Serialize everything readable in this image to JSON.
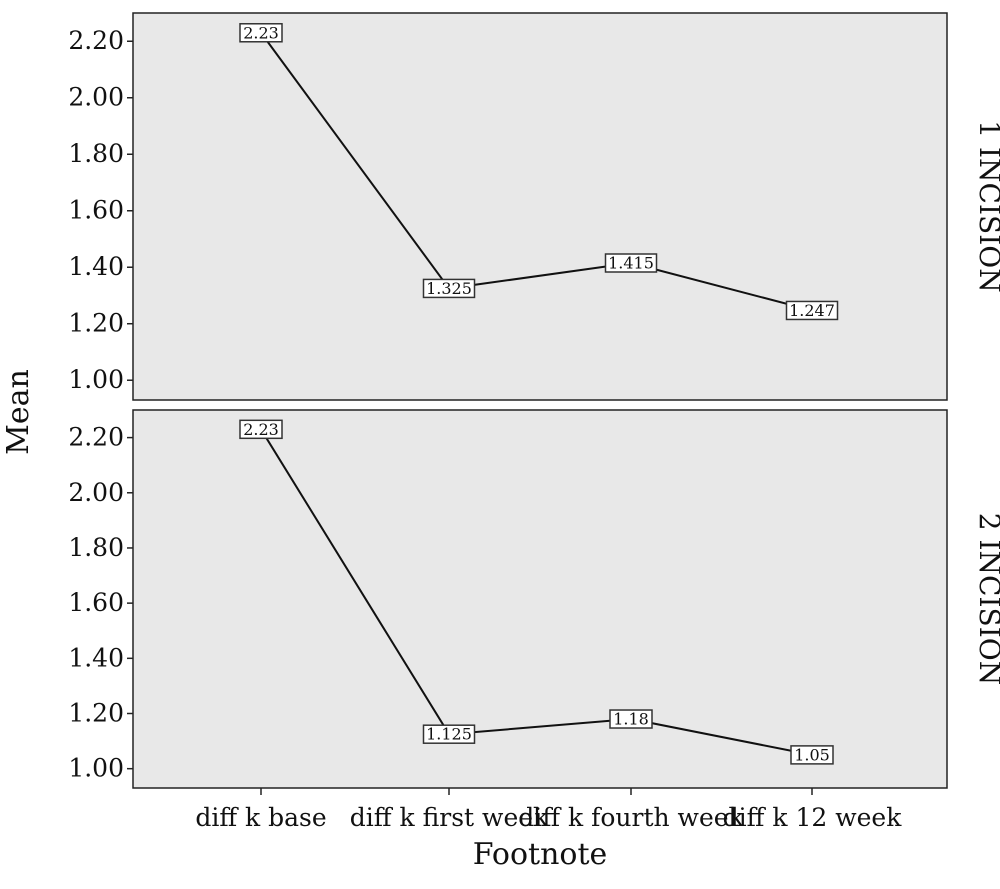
{
  "chart_data": {
    "type": "line",
    "xlabel": "Footnote",
    "ylabel": "Mean",
    "categories": [
      "diff k base",
      "diff k first week",
      "diff k fourth week",
      "diff k 12 week"
    ],
    "ylim": [
      0.93,
      2.3
    ],
    "yticks": [
      1.0,
      1.2,
      1.4,
      1.6,
      1.8,
      2.0,
      2.2
    ],
    "ytick_labels": [
      "1.00",
      "1.20",
      "1.40",
      "1.60",
      "1.80",
      "2.00",
      "2.20"
    ],
    "grid": false,
    "panel_background": "#e8e8e8",
    "line_color": "#111111",
    "panels": [
      {
        "facet_label": "1 INCISION",
        "values": [
          2.23,
          1.325,
          1.415,
          1.247
        ],
        "point_labels": [
          "2.23",
          "1.325",
          "1.415",
          "1.247"
        ]
      },
      {
        "facet_label": "2 INCISION",
        "values": [
          2.23,
          1.125,
          1.18,
          1.05
        ],
        "point_labels": [
          "2.23",
          "1.125",
          "1.18",
          "1.05"
        ]
      }
    ]
  }
}
